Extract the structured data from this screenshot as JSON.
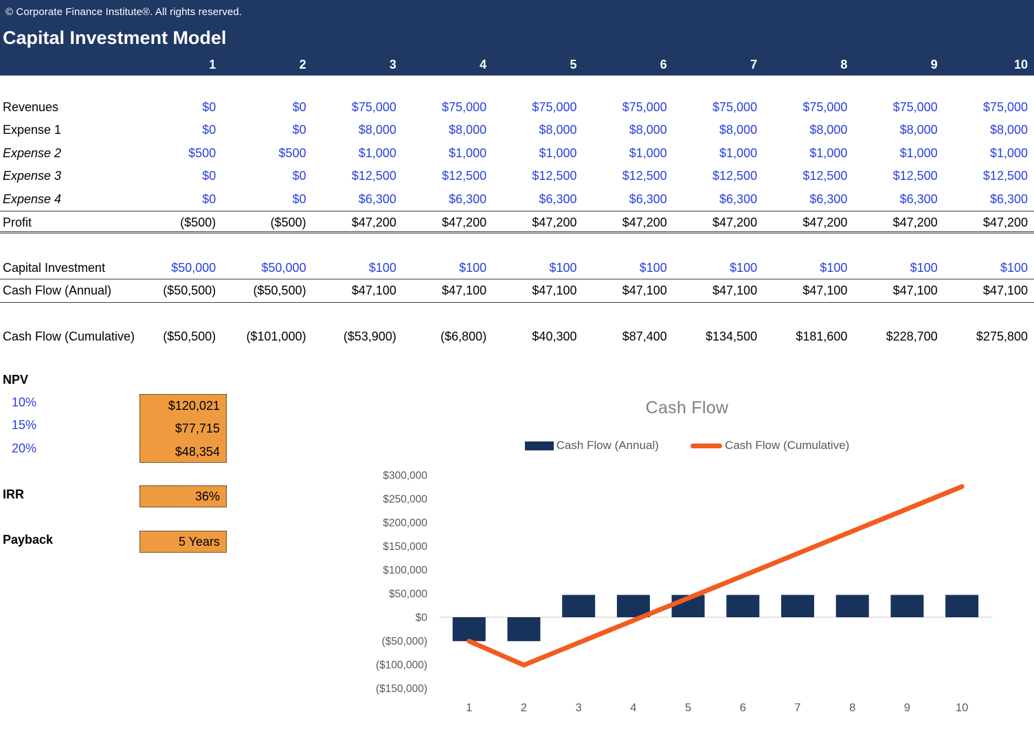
{
  "header": {
    "copyright": "© Corporate Finance Institute®. All rights reserved.",
    "title": "Capital Investment Model",
    "columns": [
      "1",
      "2",
      "3",
      "4",
      "5",
      "6",
      "7",
      "8",
      "9",
      "10"
    ]
  },
  "colors": {
    "navy": "#1F3864",
    "bar": "#17335C",
    "orange_line": "#F25C1F",
    "input_blue": "#2840E0",
    "box_orange": "#EE9B40",
    "axis_gray": "#DCDCDC",
    "chart_text": "#595959",
    "title_gray": "#7F7F7F"
  },
  "table": {
    "rows": [
      {
        "label": "Revenues",
        "italic": false,
        "color": "blue",
        "rule": "none",
        "gap_before": false,
        "values": [
          "$0",
          "$0",
          "$75,000",
          "$75,000",
          "$75,000",
          "$75,000",
          "$75,000",
          "$75,000",
          "$75,000",
          "$75,000"
        ]
      },
      {
        "label": "Expense 1",
        "italic": false,
        "color": "blue",
        "rule": "none",
        "gap_before": false,
        "values": [
          "$0",
          "$0",
          "$8,000",
          "$8,000",
          "$8,000",
          "$8,000",
          "$8,000",
          "$8,000",
          "$8,000",
          "$8,000"
        ]
      },
      {
        "label": "Expense 2",
        "italic": true,
        "color": "blue",
        "rule": "none",
        "gap_before": false,
        "values": [
          "$500",
          "$500",
          "$1,000",
          "$1,000",
          "$1,000",
          "$1,000",
          "$1,000",
          "$1,000",
          "$1,000",
          "$1,000"
        ]
      },
      {
        "label": "Expense 3",
        "italic": true,
        "color": "blue",
        "rule": "none",
        "gap_before": false,
        "values": [
          "$0",
          "$0",
          "$12,500",
          "$12,500",
          "$12,500",
          "$12,500",
          "$12,500",
          "$12,500",
          "$12,500",
          "$12,500"
        ]
      },
      {
        "label": "Expense 4",
        "italic": true,
        "color": "blue",
        "rule": "none",
        "gap_before": false,
        "values": [
          "$0",
          "$0",
          "$6,300",
          "$6,300",
          "$6,300",
          "$6,300",
          "$6,300",
          "$6,300",
          "$6,300",
          "$6,300"
        ]
      },
      {
        "label": "Profit",
        "italic": false,
        "color": "black",
        "rule": "total",
        "gap_before": false,
        "values": [
          "($500)",
          "($500)",
          "$47,200",
          "$47,200",
          "$47,200",
          "$47,200",
          "$47,200",
          "$47,200",
          "$47,200",
          "$47,200"
        ]
      },
      {
        "label": "Capital Investment",
        "italic": false,
        "color": "blue",
        "rule": "single",
        "gap_before": true,
        "values": [
          "$50,000",
          "$50,000",
          "$100",
          "$100",
          "$100",
          "$100",
          "$100",
          "$100",
          "$100",
          "$100"
        ]
      },
      {
        "label": "Cash Flow (Annual)",
        "italic": false,
        "color": "black",
        "rule": "single",
        "gap_before": false,
        "values": [
          "($50,500)",
          "($50,500)",
          "$47,100",
          "$47,100",
          "$47,100",
          "$47,100",
          "$47,100",
          "$47,100",
          "$47,100",
          "$47,100"
        ]
      },
      {
        "label": "Cash Flow (Cumulative)",
        "italic": false,
        "color": "black",
        "rule": "none",
        "gap_before": true,
        "values": [
          "($50,500)",
          "($101,000)",
          "($53,900)",
          "($6,800)",
          "$40,300",
          "$87,400",
          "$134,500",
          "$181,600",
          "$228,700",
          "$275,800"
        ]
      }
    ]
  },
  "metrics": {
    "npv_label": "NPV",
    "npv_rows": [
      {
        "rate": "10%",
        "value": "$120,021"
      },
      {
        "rate": "15%",
        "value": "$77,715"
      },
      {
        "rate": "20%",
        "value": "$48,354"
      }
    ],
    "irr_label": "IRR",
    "irr_value": "36%",
    "payback_label": "Payback",
    "payback_value": "5 Years"
  },
  "chart_data": {
    "type": "combo",
    "title": "Cash Flow",
    "categories": [
      "1",
      "2",
      "3",
      "4",
      "5",
      "6",
      "7",
      "8",
      "9",
      "10"
    ],
    "series": [
      {
        "name": "Cash Flow (Annual)",
        "type": "bar",
        "values": [
          -50500,
          -50500,
          47100,
          47100,
          47100,
          47100,
          47100,
          47100,
          47100,
          47100
        ]
      },
      {
        "name": "Cash Flow (Cumulative)",
        "type": "line",
        "values": [
          -50500,
          -101000,
          -53900,
          -6800,
          40300,
          87400,
          134500,
          181600,
          228700,
          275800
        ]
      }
    ],
    "y_ticks": [
      {
        "value": 300000,
        "label": "$300,000"
      },
      {
        "value": 250000,
        "label": "$250,000"
      },
      {
        "value": 200000,
        "label": "$200,000"
      },
      {
        "value": 150000,
        "label": "$150,000"
      },
      {
        "value": 100000,
        "label": "$100,000"
      },
      {
        "value": 50000,
        "label": "$50,000"
      },
      {
        "value": 0,
        "label": "$0"
      },
      {
        "value": -50000,
        "label": "($50,000)"
      },
      {
        "value": -100000,
        "label": "($100,000)"
      },
      {
        "value": -150000,
        "label": "($150,000)"
      }
    ],
    "ylim": [
      -150000,
      300000
    ],
    "legend_position": "top",
    "gridlines": "zero-axis-only"
  }
}
